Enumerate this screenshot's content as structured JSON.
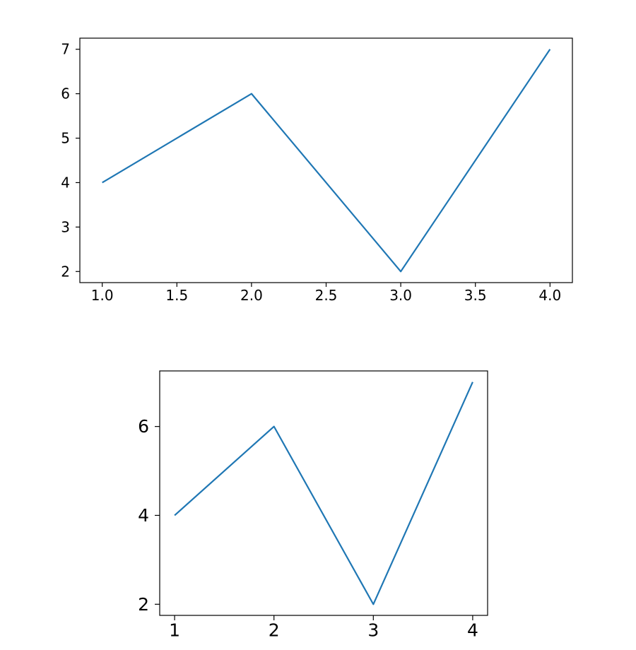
{
  "chart_data": [
    {
      "type": "line",
      "title": "",
      "xlabel": "",
      "ylabel": "",
      "x": [
        1,
        2,
        3,
        4
      ],
      "series": [
        {
          "values": [
            4,
            6,
            2,
            7
          ],
          "color": "#1f77b4"
        }
      ],
      "xlim": [
        0.85,
        4.15
      ],
      "ylim": [
        1.75,
        7.25
      ],
      "xticks": [
        1.0,
        1.5,
        2.0,
        2.5,
        3.0,
        3.5,
        4.0
      ],
      "xtick_labels": [
        "1.0",
        "1.5",
        "2.0",
        "2.5",
        "3.0",
        "3.5",
        "4.0"
      ],
      "yticks": [
        2,
        3,
        4,
        5,
        6,
        7
      ],
      "ytick_labels": [
        "2",
        "3",
        "4",
        "5",
        "6",
        "7"
      ],
      "grid": false,
      "legend": "none"
    },
    {
      "type": "line",
      "title": "",
      "xlabel": "",
      "ylabel": "",
      "x": [
        1,
        2,
        3,
        4
      ],
      "series": [
        {
          "values": [
            4,
            6,
            2,
            7
          ],
          "color": "#1f77b4"
        }
      ],
      "xlim": [
        0.85,
        4.15
      ],
      "ylim": [
        1.75,
        7.25
      ],
      "xticks": [
        1,
        2,
        3,
        4
      ],
      "xtick_labels": [
        "1",
        "2",
        "3",
        "4"
      ],
      "yticks": [
        2,
        4,
        6
      ],
      "ytick_labels": [
        "2",
        "4",
        "6"
      ],
      "grid": false,
      "legend": "none"
    }
  ]
}
